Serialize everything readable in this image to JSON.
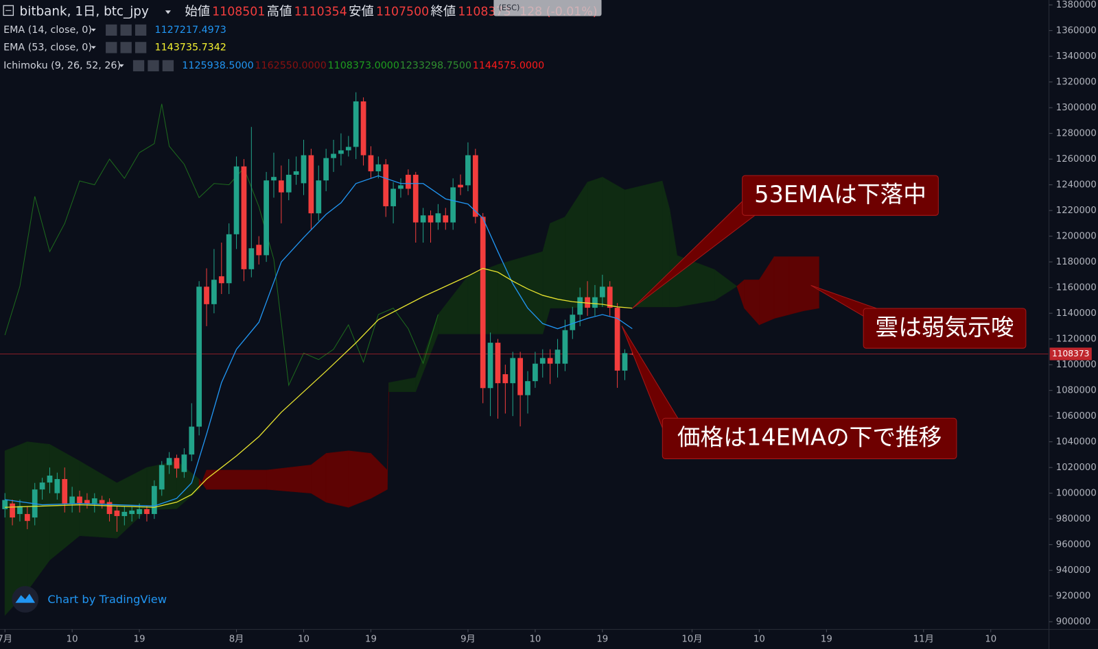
{
  "chart_data": {
    "type": "candlestick",
    "title": "bitbank, 1日, btc_jpy",
    "ohlc_labels": [
      "始値",
      "高値",
      "安値",
      "終値"
    ],
    "change": "128 (-0.01%)",
    "esc": "(ESC)",
    "credit": "Chart by TradingView",
    "colors": {
      "up": "#22a38a",
      "down": "#f23d3d",
      "last_price": "#c0262d"
    },
    "xlim": [
      -0.66,
      139.7
    ],
    "xticks": [
      {
        "value": 0,
        "label": "7月"
      },
      {
        "value": 9,
        "label": "10"
      },
      {
        "value": 18,
        "label": "19"
      },
      {
        "value": 31,
        "label": "8月"
      },
      {
        "value": 40,
        "label": "10"
      },
      {
        "value": 49,
        "label": "19"
      },
      {
        "value": 62,
        "label": "9月"
      },
      {
        "value": 71,
        "label": "10"
      },
      {
        "value": 80,
        "label": "19"
      },
      {
        "value": 92,
        "label": "10月"
      },
      {
        "value": 101,
        "label": "10"
      },
      {
        "value": 110,
        "label": "19"
      },
      {
        "value": 123,
        "label": "11月"
      },
      {
        "value": 132,
        "label": "10"
      }
    ],
    "ylim": [
      894000,
      1383800
    ],
    "yticks": [
      900000,
      920000,
      940000,
      960000,
      980000,
      1000000,
      1020000,
      1040000,
      1060000,
      1080000,
      1100000,
      1120000,
      1140000,
      1160000,
      1180000,
      1200000,
      1220000,
      1240000,
      1260000,
      1280000,
      1300000,
      1320000,
      1340000,
      1360000,
      1380000
    ],
    "x": [
      0,
      1,
      2,
      3,
      4,
      5,
      6,
      7,
      8,
      9,
      10,
      11,
      12,
      13,
      14,
      15,
      16,
      17,
      18,
      19,
      20,
      21,
      22,
      23,
      24,
      25,
      26,
      27,
      28,
      29,
      30,
      31,
      32,
      33,
      34,
      35,
      36,
      37,
      38,
      39,
      40,
      41,
      42,
      43,
      44,
      45,
      46,
      47,
      48,
      49,
      50,
      51,
      52,
      53,
      54,
      55,
      56,
      57,
      58,
      59,
      60,
      61,
      62,
      63,
      64,
      65,
      66,
      67,
      68,
      69,
      70,
      71,
      72,
      73,
      74,
      75,
      76,
      77,
      78,
      79,
      80,
      81,
      82,
      83,
      84
    ],
    "open": [
      987600,
      992000,
      983800,
      983800,
      981100,
      1002900,
      1008300,
      1000000,
      1011000,
      992000,
      997400,
      994700,
      992000,
      994700,
      993100,
      986500,
      982200,
      983800,
      983800,
      987600,
      983800,
      1002900,
      1021900,
      1027400,
      1016500,
      1030100,
      1051800,
      1160700,
      1147100,
      1168800,
      1163400,
      1201500,
      1254300,
      1174300,
      1193300,
      1185200,
      1243400,
      1243400,
      1234100,
      1247800,
      1241200,
      1263000,
      1217800,
      1243400,
      1260800,
      1264100,
      1266800,
      1269500,
      1304900,
      1263000,
      1250500,
      1255900,
      1223300,
      1236900,
      1247800,
      1247800,
      1210700,
      1216200,
      1210700,
      1216200,
      1210700,
      1240000,
      1239600,
      1263000,
      1215100,
      1081800,
      1117100,
      1092600,
      1085600,
      1105200,
      1076300,
      1087200,
      1100800,
      1105200,
      1100800,
      1100800,
      1126900,
      1138900,
      1152500,
      1144300,
      1152500,
      1160700,
      1144300,
      1095400,
      1108501
    ],
    "high": [
      1000100,
      995000,
      995000,
      990000,
      1008000,
      1012000,
      1020000,
      1016000,
      1020000,
      1005000,
      1002000,
      1000000,
      1000000,
      998000,
      996000,
      990000,
      990000,
      990000,
      992000,
      990000,
      1010000,
      1025000,
      1032000,
      1030000,
      1035000,
      1070000,
      1165000,
      1175000,
      1190000,
      1195000,
      1210000,
      1262000,
      1260000,
      1285000,
      1200000,
      1250000,
      1265000,
      1255000,
      1260000,
      1262000,
      1275000,
      1268000,
      1255000,
      1268000,
      1275000,
      1280000,
      1278000,
      1312000,
      1308000,
      1270000,
      1262000,
      1260000,
      1242000,
      1245000,
      1252000,
      1250000,
      1222000,
      1220000,
      1225000,
      1222000,
      1245000,
      1248000,
      1273000,
      1268000,
      1218000,
      1125000,
      1120000,
      1100000,
      1110000,
      1110000,
      1095000,
      1110000,
      1112000,
      1112000,
      1120000,
      1135000,
      1145000,
      1160000,
      1165000,
      1162000,
      1170000,
      1165000,
      1148000,
      1112000,
      1110354
    ],
    "low": [
      981100,
      975000,
      978000,
      972000,
      975000,
      995000,
      1000000,
      995000,
      985000,
      985000,
      985000,
      988000,
      985000,
      988000,
      978000,
      970000,
      975000,
      978000,
      980000,
      978000,
      980000,
      998000,
      1015000,
      1012000,
      1012000,
      1025000,
      1045000,
      1130000,
      1140000,
      1155000,
      1155000,
      1190000,
      1165000,
      1168000,
      1178000,
      1180000,
      1230000,
      1210000,
      1228000,
      1240000,
      1232000,
      1205000,
      1212000,
      1235000,
      1250000,
      1255000,
      1262000,
      1260000,
      1255000,
      1245000,
      1245000,
      1215000,
      1210000,
      1230000,
      1232000,
      1195000,
      1195000,
      1195000,
      1205000,
      1205000,
      1205000,
      1232000,
      1235000,
      1210000,
      1070000,
      1060000,
      1058000,
      1062000,
      1060000,
      1052000,
      1062000,
      1082000,
      1090000,
      1085000,
      1090000,
      1095000,
      1120000,
      1130000,
      1138000,
      1138000,
      1145000,
      1138000,
      1082000,
      1088000,
      1107500
    ],
    "close": [
      994700,
      981100,
      990000,
      978400,
      1002900,
      1008300,
      1013700,
      1011000,
      992000,
      997400,
      992000,
      992000,
      996000,
      992000,
      983800,
      982200,
      985500,
      986500,
      987600,
      983800,
      1005600,
      1021900,
      1027400,
      1019200,
      1030100,
      1051800,
      1160700,
      1147100,
      1166100,
      1163400,
      1201500,
      1254300,
      1174300,
      1190600,
      1185200,
      1243400,
      1246100,
      1234100,
      1247800,
      1250500,
      1263000,
      1217800,
      1243400,
      1260800,
      1264100,
      1266800,
      1269500,
      1304900,
      1263000,
      1250500,
      1255900,
      1223300,
      1236900,
      1239600,
      1236900,
      1210700,
      1216200,
      1210700,
      1217800,
      1210700,
      1238000,
      1238000,
      1263000,
      1215100,
      1081800,
      1117100,
      1085600,
      1085600,
      1105200,
      1076300,
      1087200,
      1100800,
      1105200,
      1100800,
      1111700,
      1126900,
      1138900,
      1152500,
      1144300,
      1152500,
      1160700,
      1144300,
      1095400,
      1109000,
      1108373
    ],
    "indicators": [
      {
        "name": "EMA (14, close, 0)",
        "color": "#2196f3",
        "readouts": [
          {
            "text": "1127217.4973",
            "color": "#2196f3"
          }
        ],
        "x": [
          0,
          5,
          10,
          15,
          20,
          23,
          25,
          27,
          29,
          31,
          34,
          37,
          40,
          43,
          45,
          47,
          50,
          53,
          56,
          59,
          62,
          64,
          66,
          68,
          70,
          72,
          74,
          76,
          78,
          80,
          82,
          84
        ],
        "values": [
          995000,
          991000,
          992000,
          991000,
          990000,
          996000,
          1008000,
          1046000,
          1086000,
          1112000,
          1133000,
          1180000,
          1199000,
          1217000,
          1226000,
          1241000,
          1247000,
          1241000,
          1241000,
          1229000,
          1225000,
          1214000,
          1188000,
          1163000,
          1144000,
          1132000,
          1128000,
          1132000,
          1136000,
          1139000,
          1136000,
          1128000
        ]
      },
      {
        "name": "EMA (53, close, 0)",
        "color": "#e6e22e",
        "readouts": [
          {
            "text": "1143735.7342",
            "color": "#f5f230"
          }
        ],
        "x": [
          0,
          5,
          10,
          15,
          20,
          23,
          25,
          27,
          29,
          31,
          34,
          37,
          40,
          43,
          45,
          47,
          50,
          53,
          56,
          59,
          62,
          64,
          66,
          68,
          70,
          72,
          74,
          76,
          78,
          80,
          82,
          84
        ],
        "values": [
          989000,
          990000,
          991000,
          990000,
          989000,
          993000,
          999000,
          1011000,
          1020000,
          1029000,
          1044000,
          1063000,
          1079000,
          1095000,
          1106000,
          1117000,
          1135000,
          1144000,
          1153000,
          1161000,
          1169000,
          1175000,
          1172000,
          1165000,
          1159000,
          1154000,
          1151000,
          1149000,
          1148000,
          1147000,
          1145000,
          1144000
        ]
      },
      {
        "name": "Ichimoku (9, 26, 52, 26)",
        "readouts": [
          {
            "text": "1125938.5000",
            "color": "#2196f3"
          },
          {
            "text": "1162550.0000",
            "color": "#8b1010"
          },
          {
            "text": "1108373.0000",
            "color": "#1e9e1e"
          },
          {
            "text": "1233298.7500",
            "color": "#2f8f2f"
          },
          {
            "text": "1144575.0000",
            "color": "#ff1a1a"
          }
        ],
        "lagging": {
          "color": "#1d6b1d",
          "x": [
            0,
            2,
            4,
            6,
            8,
            10,
            12,
            14,
            16,
            18,
            20,
            21,
            22,
            24,
            26,
            28,
            30,
            32,
            34,
            36,
            38,
            40,
            42,
            44,
            46,
            48,
            50,
            52,
            54,
            56,
            58
          ],
          "values": [
            1123000,
            1161000,
            1231000,
            1188000,
            1210000,
            1243000,
            1240000,
            1260000,
            1245000,
            1265000,
            1272000,
            1303000,
            1270000,
            1256000,
            1230000,
            1241000,
            1240000,
            1253000,
            1223000,
            1182000,
            1084000,
            1109000,
            1104000,
            1112000,
            1131000,
            1102000,
            1139000,
            1144000,
            1128000,
            1101000,
            1139000
          ]
        },
        "cloud": {
          "bull_color": "#0f2b12",
          "bear_color": "#5e0303",
          "x": [
            0,
            3,
            6,
            10,
            15,
            19,
            23,
            26,
            27,
            35,
            41,
            43,
            46,
            49,
            51.2,
            51.4,
            55,
            58,
            62,
            66,
            72,
            73,
            75,
            78,
            80,
            83,
            88,
            89,
            90,
            95,
            98,
            99,
            101,
            103,
            105,
            107,
            109
          ],
          "span_a": [
            1033000,
            1040000,
            1038000,
            1025000,
            1008000,
            1020000,
            1025000,
            1011000,
            1003000,
            1003000,
            1000000,
            993000,
            989000,
            996000,
            1003000,
            1086000,
            1090000,
            1139000,
            1169000,
            1178000,
            1188000,
            1210000,
            1215000,
            1242000,
            1246000,
            1236000,
            1243000,
            1221000,
            1185000,
            1174000,
            1161000,
            1144000,
            1131000,
            1136000,
            1139000,
            1142000,
            1144000
          ],
          "span_b": [
            905000,
            924000,
            948000,
            967000,
            965000,
            987000,
            988000,
            1003000,
            1018000,
            1018000,
            1022000,
            1031000,
            1033000,
            1031000,
            1018000,
            1079000,
            1079000,
            1124000,
            1124000,
            1124000,
            1124000,
            1144000,
            1144000,
            1145000,
            1145000,
            1145000,
            1145000,
            1145000,
            1145000,
            1150000,
            1161000,
            1166000,
            1166000,
            1184000,
            1184000,
            1184000,
            1184000
          ]
        }
      }
    ],
    "annotations": [
      "53EMAは下落中",
      "雲は弱気示唆",
      "価格は14EMAの下で推移"
    ]
  }
}
